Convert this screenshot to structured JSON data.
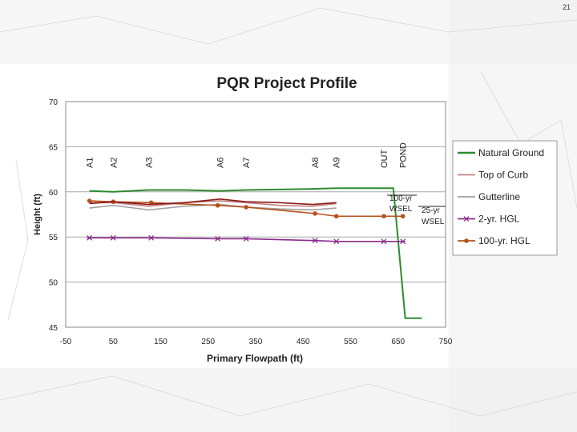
{
  "slide": {
    "page_number": "21"
  },
  "chart_data": {
    "type": "line",
    "title": "PQR Project Profile",
    "xlabel": "Primary Flowpath (ft)",
    "ylabel": "Height (ft)",
    "xlim": [
      -50,
      750
    ],
    "ylim": [
      45,
      70
    ],
    "xticks": [
      "-50",
      "50",
      "150",
      "250",
      "350",
      "450",
      "550",
      "650",
      "750"
    ],
    "yticks": [
      "45",
      "50",
      "55",
      "60",
      "65",
      "70"
    ],
    "grid": true,
    "legend_position": "right",
    "series": [
      {
        "name": "Natural Ground",
        "color": "#2e8b2e",
        "marker": "none",
        "x": [
          0,
          50,
          125,
          200,
          275,
          330,
          450,
          520,
          620,
          640,
          665,
          700
        ],
        "y": [
          60.1,
          60.0,
          60.2,
          60.2,
          60.1,
          60.2,
          60.3,
          60.4,
          60.4,
          60.4,
          46.0,
          46.0
        ]
      },
      {
        "name": "Top of Curb",
        "color": "#c08080",
        "marker": "none",
        "x": [
          0,
          50,
          125,
          200,
          275,
          330,
          400,
          470,
          520
        ],
        "y": [
          58.8,
          58.8,
          58.4,
          58.8,
          59.0,
          58.8,
          58.5,
          58.4,
          58.7
        ]
      },
      {
        "name": "Gutterline",
        "color": "#a0a0a0",
        "marker": "none",
        "x": [
          0,
          50,
          125,
          200,
          275,
          330,
          400,
          470,
          520
        ],
        "y": [
          58.2,
          58.5,
          58.0,
          58.4,
          58.6,
          58.3,
          58.1,
          58.0,
          58.2
        ]
      },
      {
        "name": "2-yr. HGL",
        "color": "#8b2a8b",
        "marker": "x",
        "x": [
          0,
          50,
          130,
          270,
          330,
          475,
          520,
          620,
          660
        ],
        "y": [
          54.9,
          54.9,
          54.9,
          54.8,
          54.8,
          54.6,
          54.5,
          54.5,
          54.5
        ]
      },
      {
        "name": "100-yr. HGL",
        "color": "#b5521b",
        "marker": "circle",
        "x": [
          0,
          50,
          130,
          270,
          330,
          475,
          520,
          620,
          660
        ],
        "y": [
          59.0,
          58.9,
          58.8,
          58.5,
          58.3,
          57.6,
          57.3,
          57.3,
          57.3
        ]
      },
      {
        "name": "",
        "color": "#8b1a1a",
        "marker": "none",
        "legend": false,
        "x": [
          0,
          50,
          125,
          200,
          275,
          330,
          400,
          470,
          520
        ],
        "y": [
          58.7,
          58.9,
          58.6,
          58.8,
          59.2,
          58.9,
          58.8,
          58.6,
          58.8
        ]
      }
    ],
    "annotations": [
      {
        "text": "A1",
        "x": 0,
        "rotate": true
      },
      {
        "text": "A2",
        "x": 50,
        "rotate": true
      },
      {
        "text": "A3",
        "x": 125,
        "rotate": true
      },
      {
        "text": "A6",
        "x": 275,
        "rotate": true
      },
      {
        "text": "A7",
        "x": 330,
        "rotate": true
      },
      {
        "text": "A8",
        "x": 475,
        "rotate": true
      },
      {
        "text": "A9",
        "x": 520,
        "rotate": true
      },
      {
        "text": "OUT",
        "x": 620,
        "rotate": true
      },
      {
        "text": "POND",
        "x": 660,
        "rotate": true
      }
    ],
    "wsel_labels": [
      {
        "line1": "100-yr",
        "line2": "WSEL"
      },
      {
        "line1": "25-yr",
        "line2": "WSEL"
      }
    ]
  }
}
